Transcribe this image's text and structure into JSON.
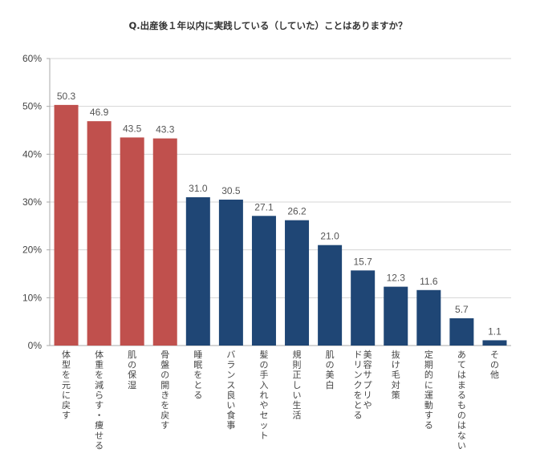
{
  "chart_data": {
    "type": "bar",
    "title": "Q.出産後１年以内に実践している（していた）ことはありますか？",
    "categories": [
      "体型を元に戻す",
      "体重を減らす・痩せる",
      "肌の保湿",
      "骨盤の開きを戻す",
      "睡眠をとる",
      "バランス良い食事",
      "髪の手入れやセット",
      "規則正しい生活",
      "肌の美白",
      "美容サプリや\nドリンクをとる",
      "抜け毛対策",
      "定期的に運動する",
      "あてはまるものはない",
      "その他"
    ],
    "values": [
      50.3,
      46.9,
      43.5,
      43.3,
      31.0,
      30.5,
      27.1,
      26.2,
      21.0,
      15.7,
      12.3,
      11.6,
      5.7,
      1.1
    ],
    "value_labels": [
      "50.3",
      "46.9",
      "43.5",
      "43.3",
      "31.0",
      "30.5",
      "27.1",
      "26.2",
      "21.0",
      "15.7",
      "12.3",
      "11.6",
      "5.7",
      "1.1"
    ],
    "highlight_count": 4,
    "colors": {
      "highlight": "#c0504d",
      "default": "#1f4675",
      "grid": "#d4d4d4",
      "axis": "#aaaaaa"
    },
    "yticks": [
      0,
      10,
      20,
      30,
      40,
      50,
      60
    ],
    "ytick_labels": [
      "0%",
      "10%",
      "20%",
      "30%",
      "40%",
      "50%",
      "60%"
    ],
    "ylim": [
      0,
      60
    ],
    "grid": true,
    "xlabel": "",
    "ylabel": ""
  }
}
